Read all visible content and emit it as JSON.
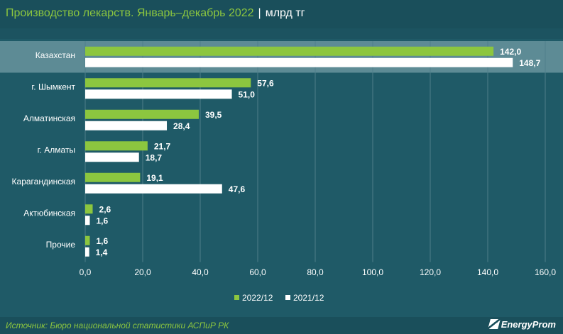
{
  "title": {
    "main": "Производство лекарств. Январь–декабрь 2022",
    "separator": "|",
    "unit": "млрд тг"
  },
  "colors": {
    "series_2022": "#8cc63f",
    "series_2021": "#ffffff",
    "highlight_row": "#5d8b95"
  },
  "chart_data": {
    "type": "bar",
    "orientation": "horizontal",
    "categories": [
      "Казахстан",
      "г. Шымкент",
      "Алматинская",
      "г. Алматы",
      "Карагандинская",
      "Актюбинская",
      "Прочие"
    ],
    "series": [
      {
        "name": "2022/12",
        "values": [
          142.0,
          57.6,
          39.5,
          21.7,
          19.1,
          2.6,
          1.6
        ],
        "labels": [
          "142,0",
          "57,6",
          "39,5",
          "21,7",
          "19,1",
          "2,6",
          "1,6"
        ]
      },
      {
        "name": "2021/12",
        "values": [
          148.7,
          51.0,
          28.4,
          18.7,
          47.6,
          1.6,
          1.4
        ],
        "labels": [
          "148,7",
          "51,0",
          "28,4",
          "18,7",
          "47,6",
          "1,6",
          "1,4"
        ]
      }
    ],
    "xlim": [
      0,
      160
    ],
    "xticks": [
      0,
      20,
      40,
      60,
      80,
      100,
      120,
      140,
      160
    ],
    "xtick_labels": [
      "0,0",
      "20,0",
      "40,0",
      "60,0",
      "80,0",
      "100,0",
      "120,0",
      "140,0",
      "160,0"
    ],
    "grid": "vertical",
    "legend_position": "bottom",
    "highlighted_category": "Казахстан"
  },
  "source": "Источник: Бюро национальной статистики АСПиР РК",
  "logo": {
    "text": "EnergyProm"
  }
}
